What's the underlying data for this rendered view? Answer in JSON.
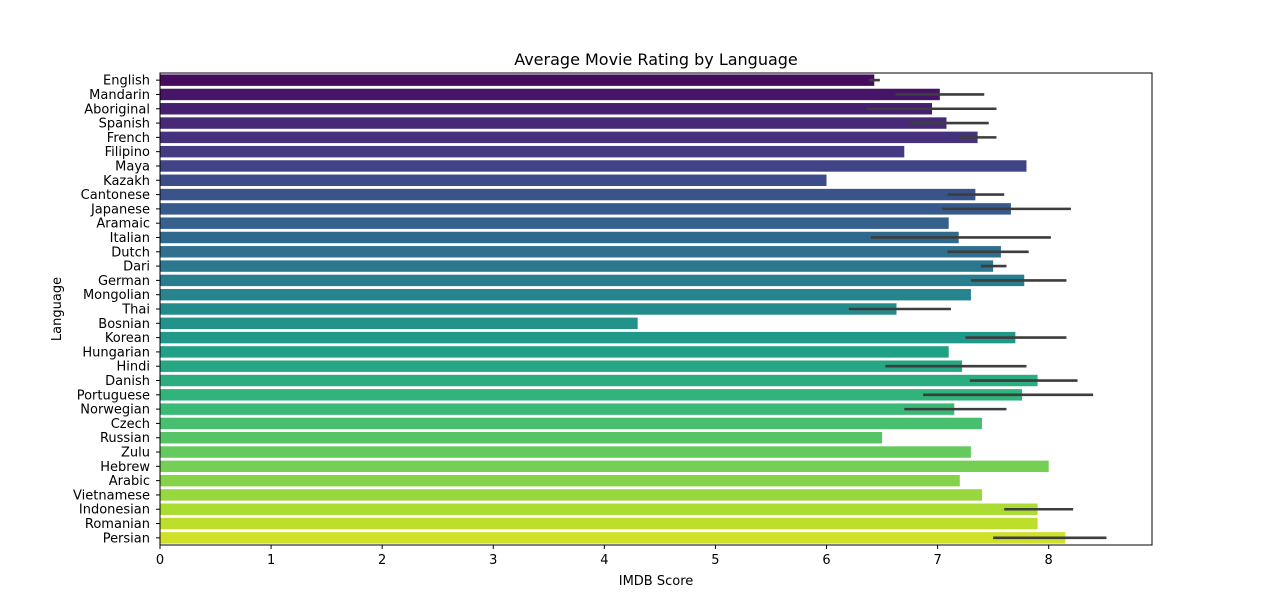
{
  "chart_data": {
    "type": "bar",
    "orientation": "horizontal",
    "title": "Average Movie Rating by Language",
    "xlabel": "IMDB Score",
    "ylabel": "Language",
    "xlim": [
      0,
      8.93
    ],
    "xticks": [
      0,
      1,
      2,
      3,
      4,
      5,
      6,
      7,
      8
    ],
    "grid": false,
    "legend": "none",
    "colormap": "viridis",
    "categories": [
      "English",
      "Mandarin",
      "Aboriginal",
      "Spanish",
      "French",
      "Filipino",
      "Maya",
      "Kazakh",
      "Cantonese",
      "Japanese",
      "Aramaic",
      "Italian",
      "Dutch",
      "Dari",
      "German",
      "Mongolian",
      "Thai",
      "Bosnian",
      "Korean",
      "Hungarian",
      "Hindi",
      "Danish",
      "Portuguese",
      "Norwegian",
      "Czech",
      "Russian",
      "Zulu",
      "Hebrew",
      "Arabic",
      "Vietnamese",
      "Indonesian",
      "Romanian",
      "Persian"
    ],
    "values": [
      6.43,
      7.02,
      6.95,
      7.08,
      7.36,
      6.7,
      7.8,
      6.0,
      7.34,
      7.66,
      7.1,
      7.19,
      7.57,
      7.5,
      7.78,
      7.3,
      6.63,
      4.3,
      7.7,
      7.1,
      7.22,
      7.9,
      7.76,
      7.15,
      7.4,
      6.5,
      7.3,
      8.0,
      7.2,
      7.4,
      7.9,
      7.9,
      8.15
    ],
    "error_low": [
      6.38,
      6.62,
      6.36,
      6.75,
      7.2,
      null,
      null,
      null,
      7.09,
      7.04,
      null,
      6.4,
      7.09,
      7.39,
      7.3,
      null,
      6.2,
      null,
      7.25,
      null,
      6.53,
      7.29,
      6.87,
      6.7,
      null,
      null,
      null,
      null,
      null,
      null,
      7.6,
      null,
      7.5
    ],
    "error_high": [
      6.48,
      7.42,
      7.53,
      7.46,
      7.53,
      null,
      null,
      null,
      7.6,
      8.2,
      null,
      8.02,
      7.82,
      7.62,
      8.16,
      null,
      7.12,
      null,
      8.16,
      null,
      7.8,
      8.26,
      8.4,
      7.62,
      null,
      null,
      null,
      null,
      null,
      null,
      8.22,
      null,
      8.52
    ]
  }
}
